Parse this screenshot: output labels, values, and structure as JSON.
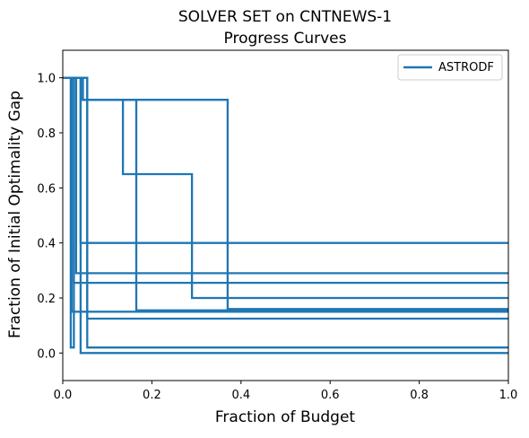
{
  "chart_data": {
    "type": "line",
    "title": "SOLVER SET on CNTNEWS-1",
    "subtitle": "Progress Curves",
    "xlabel": "Fraction of Budget",
    "ylabel": "Fraction of Initial Optimality Gap",
    "xlim": [
      0,
      1
    ],
    "ylim": [
      -0.1,
      1.1
    ],
    "xticks": [
      0,
      0.2,
      0.4,
      0.6,
      0.8,
      1
    ],
    "xtick_labels": [
      "0.0",
      "0.2",
      "0.4",
      "0.6",
      "0.8",
      "1.0"
    ],
    "yticks": [
      0,
      0.2,
      0.4,
      0.6,
      0.8,
      1
    ],
    "ytick_labels": [
      "0.0",
      "0.2",
      "0.4",
      "0.6",
      "0.8",
      "1.0"
    ],
    "grid": false,
    "legend": {
      "position": "top-right",
      "entries": [
        "ASTRODF"
      ]
    },
    "series_color": "#1f77b4",
    "series": [
      {
        "name": "ASTRODF",
        "x": [
          0,
          0.04,
          0.04,
          1
        ],
        "y": [
          1,
          1,
          0.4,
          0.4
        ]
      },
      {
        "name": "ASTRODF",
        "x": [
          0,
          0.03,
          0.03,
          1
        ],
        "y": [
          1,
          1,
          0.29,
          0.29
        ]
      },
      {
        "name": "ASTRODF",
        "x": [
          0,
          0.025,
          0.025,
          1
        ],
        "y": [
          1,
          1,
          0.255,
          0.255
        ]
      },
      {
        "name": "ASTRODF",
        "x": [
          0,
          0.045,
          0.045,
          0.135,
          0.135,
          0.29,
          0.29,
          1
        ],
        "y": [
          1,
          1,
          0.92,
          0.92,
          0.65,
          0.65,
          0.2,
          0.2
        ]
      },
      {
        "name": "ASTRODF",
        "x": [
          0,
          0.045,
          0.045,
          0.37,
          0.37,
          1
        ],
        "y": [
          1,
          1,
          0.92,
          0.92,
          0.16,
          0.16
        ]
      },
      {
        "name": "ASTRODF",
        "x": [
          0,
          0.045,
          0.045,
          0.165,
          0.165,
          1
        ],
        "y": [
          1,
          1,
          0.92,
          0.92,
          0.155,
          0.155
        ]
      },
      {
        "name": "ASTRODF",
        "x": [
          0,
          0.02,
          0.02,
          1
        ],
        "y": [
          1,
          1,
          0.15,
          0.15
        ]
      },
      {
        "name": "ASTRODF",
        "x": [
          0,
          0.055,
          0.055,
          1
        ],
        "y": [
          1,
          1,
          0.125,
          0.125
        ]
      },
      {
        "name": "ASTRODF",
        "x": [
          0,
          0.018,
          0.018,
          0.025,
          0.025,
          0.055,
          0.055,
          1
        ],
        "y": [
          1,
          1,
          0.02,
          0.02,
          1,
          1,
          0.02,
          0.02
        ]
      },
      {
        "name": "ASTRODF",
        "x": [
          0,
          0.04,
          0.04,
          1
        ],
        "y": [
          1,
          1,
          0,
          0
        ]
      }
    ]
  }
}
